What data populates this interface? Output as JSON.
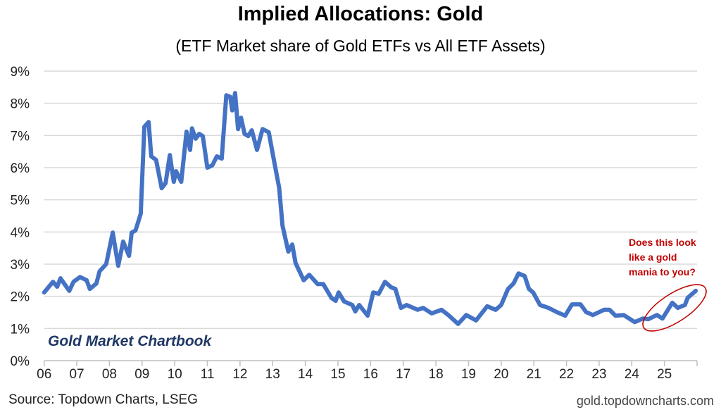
{
  "chart_data": {
    "type": "line",
    "title": "Implied Allocations: Gold",
    "subtitle": "(ETF Market share of Gold ETFs vs All ETF Assets)",
    "xlabel": "",
    "ylabel": "",
    "xlim": [
      2006,
      2026
    ],
    "ylim": [
      0,
      9
    ],
    "y_ticks": [
      "0%",
      "1%",
      "2%",
      "3%",
      "4%",
      "5%",
      "6%",
      "7%",
      "8%",
      "9%"
    ],
    "x_ticks": [
      "06",
      "07",
      "08",
      "09",
      "10",
      "11",
      "12",
      "13",
      "14",
      "15",
      "16",
      "17",
      "18",
      "19",
      "20",
      "21",
      "22",
      "23",
      "24",
      "25"
    ],
    "grid": "horizontal",
    "line_color": "#4472c4",
    "series": [
      {
        "points": [
          [
            2006.0,
            2.12
          ],
          [
            2006.27,
            2.45
          ],
          [
            2006.4,
            2.3
          ],
          [
            2006.5,
            2.56
          ],
          [
            2006.77,
            2.17
          ],
          [
            2006.9,
            2.45
          ],
          [
            2007.1,
            2.6
          ],
          [
            2007.3,
            2.5
          ],
          [
            2007.4,
            2.23
          ],
          [
            2007.6,
            2.4
          ],
          [
            2007.7,
            2.78
          ],
          [
            2007.9,
            3.0
          ],
          [
            2008.1,
            3.98
          ],
          [
            2008.27,
            2.95
          ],
          [
            2008.42,
            3.7
          ],
          [
            2008.6,
            3.26
          ],
          [
            2008.68,
            3.98
          ],
          [
            2008.8,
            4.05
          ],
          [
            2008.96,
            4.57
          ],
          [
            2009.07,
            7.27
          ],
          [
            2009.2,
            7.42
          ],
          [
            2009.28,
            6.35
          ],
          [
            2009.43,
            6.24
          ],
          [
            2009.6,
            5.36
          ],
          [
            2009.72,
            5.52
          ],
          [
            2009.85,
            6.39
          ],
          [
            2009.97,
            5.56
          ],
          [
            2010.04,
            5.89
          ],
          [
            2010.2,
            5.56
          ],
          [
            2010.36,
            7.12
          ],
          [
            2010.47,
            6.55
          ],
          [
            2010.53,
            7.22
          ],
          [
            2010.64,
            6.9
          ],
          [
            2010.75,
            7.05
          ],
          [
            2010.86,
            6.98
          ],
          [
            2011.0,
            6.0
          ],
          [
            2011.15,
            6.07
          ],
          [
            2011.29,
            6.35
          ],
          [
            2011.44,
            6.28
          ],
          [
            2011.58,
            8.25
          ],
          [
            2011.7,
            8.2
          ],
          [
            2011.76,
            7.78
          ],
          [
            2011.85,
            8.32
          ],
          [
            2011.94,
            7.2
          ],
          [
            2012.03,
            7.55
          ],
          [
            2012.14,
            7.05
          ],
          [
            2012.25,
            6.98
          ],
          [
            2012.36,
            7.16
          ],
          [
            2012.52,
            6.55
          ],
          [
            2012.69,
            7.2
          ],
          [
            2012.88,
            7.1
          ],
          [
            2013.02,
            6.33
          ],
          [
            2013.2,
            5.37
          ],
          [
            2013.3,
            4.2
          ],
          [
            2013.48,
            3.39
          ],
          [
            2013.6,
            3.61
          ],
          [
            2013.7,
            3.04
          ],
          [
            2013.95,
            2.5
          ],
          [
            2014.12,
            2.67
          ],
          [
            2014.38,
            2.38
          ],
          [
            2014.55,
            2.38
          ],
          [
            2014.8,
            1.95
          ],
          [
            2014.93,
            1.86
          ],
          [
            2015.02,
            2.12
          ],
          [
            2015.19,
            1.84
          ],
          [
            2015.44,
            1.73
          ],
          [
            2015.53,
            1.53
          ],
          [
            2015.65,
            1.73
          ],
          [
            2015.91,
            1.4
          ],
          [
            2016.08,
            2.12
          ],
          [
            2016.25,
            2.08
          ],
          [
            2016.44,
            2.45
          ],
          [
            2016.63,
            2.28
          ],
          [
            2016.76,
            2.23
          ],
          [
            2016.93,
            1.64
          ],
          [
            2017.1,
            1.73
          ],
          [
            2017.44,
            1.58
          ],
          [
            2017.61,
            1.64
          ],
          [
            2017.87,
            1.47
          ],
          [
            2018.17,
            1.58
          ],
          [
            2018.38,
            1.42
          ],
          [
            2018.68,
            1.14
          ],
          [
            2018.93,
            1.42
          ],
          [
            2019.23,
            1.25
          ],
          [
            2019.57,
            1.69
          ],
          [
            2019.83,
            1.58
          ],
          [
            2020.0,
            1.73
          ],
          [
            2020.21,
            2.23
          ],
          [
            2020.38,
            2.4
          ],
          [
            2020.53,
            2.71
          ],
          [
            2020.72,
            2.63
          ],
          [
            2020.85,
            2.23
          ],
          [
            2020.98,
            2.12
          ],
          [
            2021.19,
            1.73
          ],
          [
            2021.45,
            1.64
          ],
          [
            2021.7,
            1.51
          ],
          [
            2021.96,
            1.4
          ],
          [
            2022.17,
            1.75
          ],
          [
            2022.43,
            1.75
          ],
          [
            2022.6,
            1.51
          ],
          [
            2022.81,
            1.42
          ],
          [
            2023.15,
            1.58
          ],
          [
            2023.32,
            1.58
          ],
          [
            2023.5,
            1.4
          ],
          [
            2023.75,
            1.42
          ],
          [
            2024.09,
            1.2
          ],
          [
            2024.34,
            1.31
          ],
          [
            2024.51,
            1.29
          ],
          [
            2024.77,
            1.42
          ],
          [
            2024.94,
            1.31
          ],
          [
            2025.24,
            1.8
          ],
          [
            2025.41,
            1.64
          ],
          [
            2025.63,
            1.73
          ],
          [
            2025.71,
            1.95
          ],
          [
            2025.96,
            2.17
          ]
        ]
      }
    ],
    "annotation": {
      "lines": [
        "Does this look",
        "like a gold",
        "mania to you?"
      ],
      "color": "#c00000",
      "shape": "ellipse"
    },
    "watermark": "Gold Market Chartbook",
    "source": "Source: Topdown Charts, LSEG",
    "credit": "gold.topdowncharts.com"
  }
}
